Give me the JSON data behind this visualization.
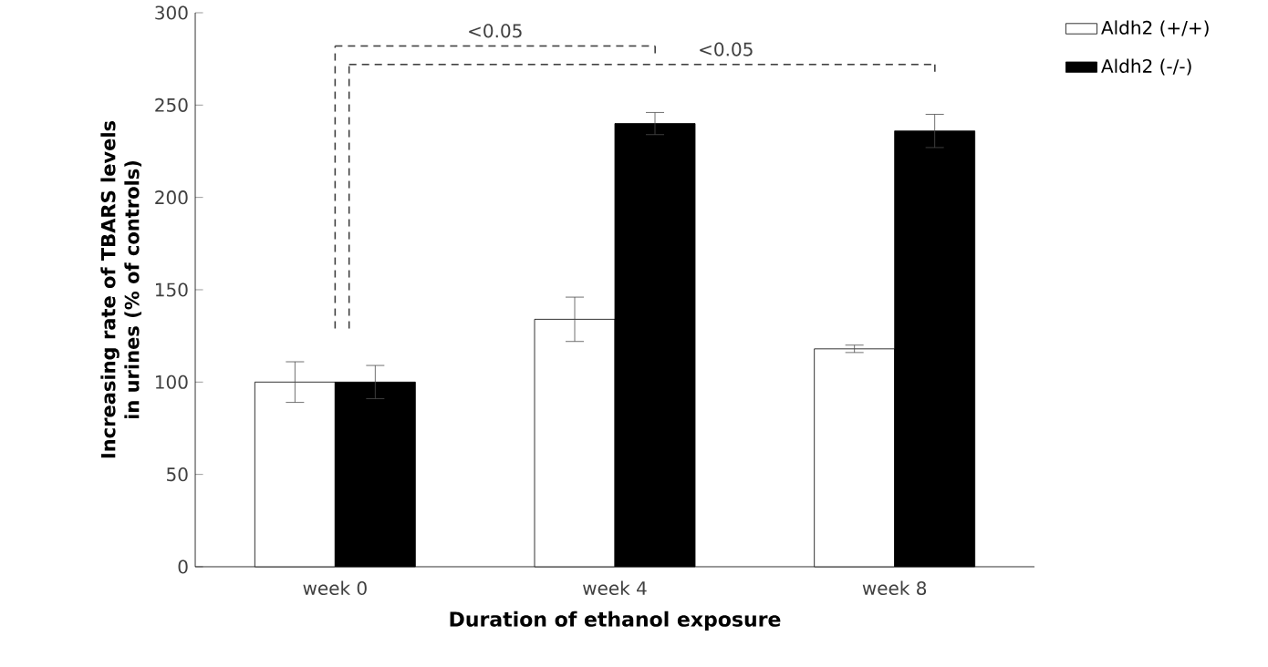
{
  "chart_data": {
    "type": "bar",
    "ylabel": "Increasing rate of  TBARS levels\nin urines (% of controls)",
    "xlabel": "Duration of ethanol exposure",
    "categories": [
      "week 0",
      "week 4",
      "week 8"
    ],
    "series": [
      {
        "name": "Aldh2 (+/+)",
        "color": "#ffffff",
        "values": [
          100,
          134,
          118
        ],
        "errors": [
          11,
          12,
          2
        ]
      },
      {
        "name": "Aldh2 (-/-)",
        "color": "#000000",
        "values": [
          100,
          240,
          236
        ],
        "errors": [
          9,
          6,
          9
        ]
      }
    ],
    "ylim": [
      0,
      300
    ],
    "yticks": [
      0,
      50,
      100,
      150,
      200,
      250,
      300
    ],
    "legend": "top right",
    "annotations": [
      "<0.05",
      "<0.05"
    ]
  }
}
